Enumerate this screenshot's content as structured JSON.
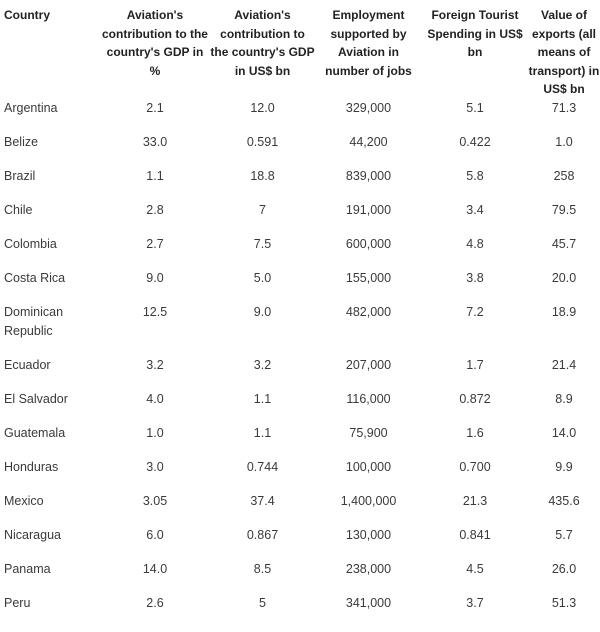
{
  "table": {
    "headers": [
      "Country",
      "Aviation's contribution to the country's GDP in %",
      "Aviation's contribution to the country's GDP in US$ bn",
      "Employment supported by Aviation in number of jobs",
      "Foreign Tourist Spending in US$ bn",
      "Value of exports (all means of transport) in US$ bn"
    ],
    "rows": [
      [
        "Argentina",
        "2.1",
        "12.0",
        "329,000",
        "5.1",
        "71.3"
      ],
      [
        "Belize",
        "33.0",
        "0.591",
        "44,200",
        "0.422",
        "1.0"
      ],
      [
        "Brazil",
        "1.1",
        "18.8",
        "839,000",
        "5.8",
        "258"
      ],
      [
        "Chile",
        "2.8",
        "7",
        "191,000",
        "3.4",
        "79.5"
      ],
      [
        "Colombia",
        "2.7",
        "7.5",
        "600,000",
        "4.8",
        "45.7"
      ],
      [
        "Costa Rica",
        "9.0",
        "5.0",
        "155,000",
        "3.8",
        "20.0"
      ],
      [
        "Dominican Republic",
        "12.5",
        "9.0",
        "482,000",
        "7.2",
        "18.9"
      ],
      [
        "Ecuador",
        "3.2",
        "3.2",
        "207,000",
        "1.7",
        "21.4"
      ],
      [
        "El Salvador",
        "4.0",
        "1.1",
        "116,000",
        "0.872",
        "8.9"
      ],
      [
        "Guatemala",
        "1.0",
        "1.1",
        "75,900",
        "1.6",
        "14.0"
      ],
      [
        "Honduras",
        "3.0",
        "0.744",
        "100,000",
        "0.700",
        "9.9"
      ],
      [
        "Mexico",
        "3.05",
        "37.4",
        "1,400,000",
        "21.3",
        "435.6"
      ],
      [
        "Nicaragua",
        "6.0",
        "0.867",
        "130,000",
        "0.841",
        "5.7"
      ],
      [
        "Panama",
        "14.0",
        "8.5",
        "238,000",
        "4.5",
        "26.0"
      ],
      [
        "Peru",
        "2.6",
        "5",
        "341,000",
        "3.7",
        "51.3"
      ]
    ]
  }
}
